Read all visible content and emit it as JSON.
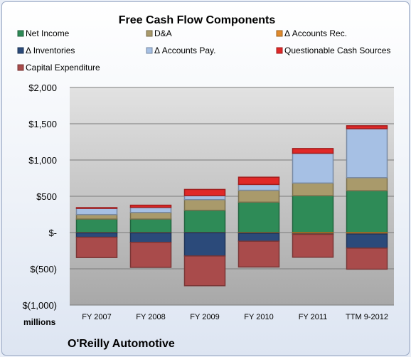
{
  "chart_data": {
    "type": "bar",
    "stacked": true,
    "title": "Free Cash Flow Components",
    "categories": [
      "FY 2007",
      "FY 2008",
      "FY 2009",
      "FY 2010",
      "FY 2011",
      "TTM 9-2012"
    ],
    "yticks": [
      "$2,000",
      "$1,500",
      "$1,000",
      "$500",
      "$-",
      "$(500)",
      "$(1,000)"
    ],
    "ylim": [
      -1000,
      2000
    ],
    "unit_label": "millions",
    "grid": true,
    "legend_position": "top",
    "series": [
      {
        "name": "Net Income",
        "color": "#2e8b57",
        "values": [
          186,
          186,
          307,
          419,
          508,
          577
        ]
      },
      {
        "name": "D&A",
        "color": "#a99a6b",
        "values": [
          62,
          91,
          147,
          164,
          175,
          180
        ]
      },
      {
        "name": "Δ Accounts Rec.",
        "color": "#e08a2c",
        "values": [
          -5,
          -5,
          -3,
          -10,
          -20,
          -20
        ]
      },
      {
        "name": "Δ Inventories",
        "color": "#2b4a7a",
        "values": [
          -60,
          -130,
          -320,
          -110,
          -5,
          -195
        ]
      },
      {
        "name": "Δ Accounts Pay.",
        "color": "#a6c0e4",
        "values": [
          85,
          70,
          55,
          80,
          410,
          675
        ]
      },
      {
        "name": "Questionable Cash Sources",
        "color": "#e02828",
        "values": [
          10,
          30,
          85,
          100,
          65,
          40
        ]
      },
      {
        "name": "Capital Expenditure",
        "color": "#a94b4b",
        "values": [
          -280,
          -345,
          -410,
          -355,
          -315,
          -290
        ]
      }
    ]
  },
  "footer": {
    "company": "O'Reilly Automotive"
  }
}
